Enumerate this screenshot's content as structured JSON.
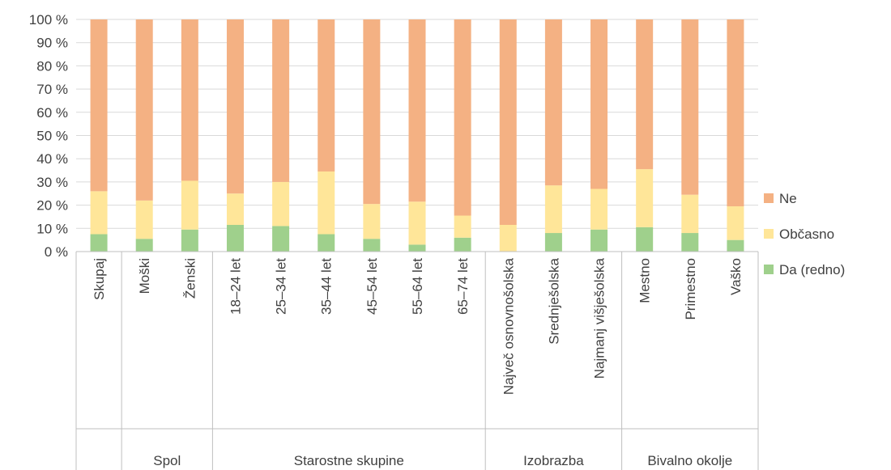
{
  "chart_data": {
    "type": "bar",
    "stacked": true,
    "percent_stacked": true,
    "categories": [
      "Skupaj",
      "Moški",
      "Ženski",
      "18–24 let",
      "25–34 let",
      "35–44 let",
      "45–54 let",
      "55–64 let",
      "65–74 let",
      "Največ osnovnošolska",
      "Srednješolska",
      "Najmanj višješolska",
      "Mestno",
      "Primestno",
      "Vaško"
    ],
    "groups": [
      {
        "label": "",
        "start": 0,
        "end": 0
      },
      {
        "label": "Spol",
        "start": 1,
        "end": 2
      },
      {
        "label": "Starostne skupine",
        "start": 3,
        "end": 8
      },
      {
        "label": "Izobrazba",
        "start": 9,
        "end": 11
      },
      {
        "label": "Bivalno okolje",
        "start": 12,
        "end": 14
      }
    ],
    "series": [
      {
        "name": "Da (redno)",
        "color": "#9fd08c",
        "values": [
          7.5,
          5.5,
          9.5,
          11.5,
          11,
          7.5,
          5.5,
          3,
          6,
          0,
          8,
          9.5,
          10.5,
          8,
          5
        ]
      },
      {
        "name": "Občasno",
        "color": "#ffe699",
        "values": [
          18.5,
          16.5,
          21,
          13.5,
          19,
          27,
          15,
          18.5,
          9.5,
          11.5,
          20.5,
          17.5,
          25,
          16.5,
          14.5
        ]
      },
      {
        "name": "Ne",
        "color": "#f4b183",
        "values": [
          74,
          78,
          69.5,
          75,
          70,
          65.5,
          79.5,
          78.5,
          84.5,
          88.5,
          71.5,
          73,
          64.5,
          75.5,
          80.5
        ]
      }
    ],
    "y_ticks": [
      "0 %",
      "10 %",
      "20 %",
      "30 %",
      "40 %",
      "50 %",
      "60 %",
      "70 %",
      "80 %",
      "90 %",
      "100 %"
    ],
    "ylim": [
      0,
      100
    ],
    "grid": true,
    "legend": {
      "position": "right",
      "order": [
        "Ne",
        "Občasno",
        "Da (redno)"
      ]
    }
  }
}
